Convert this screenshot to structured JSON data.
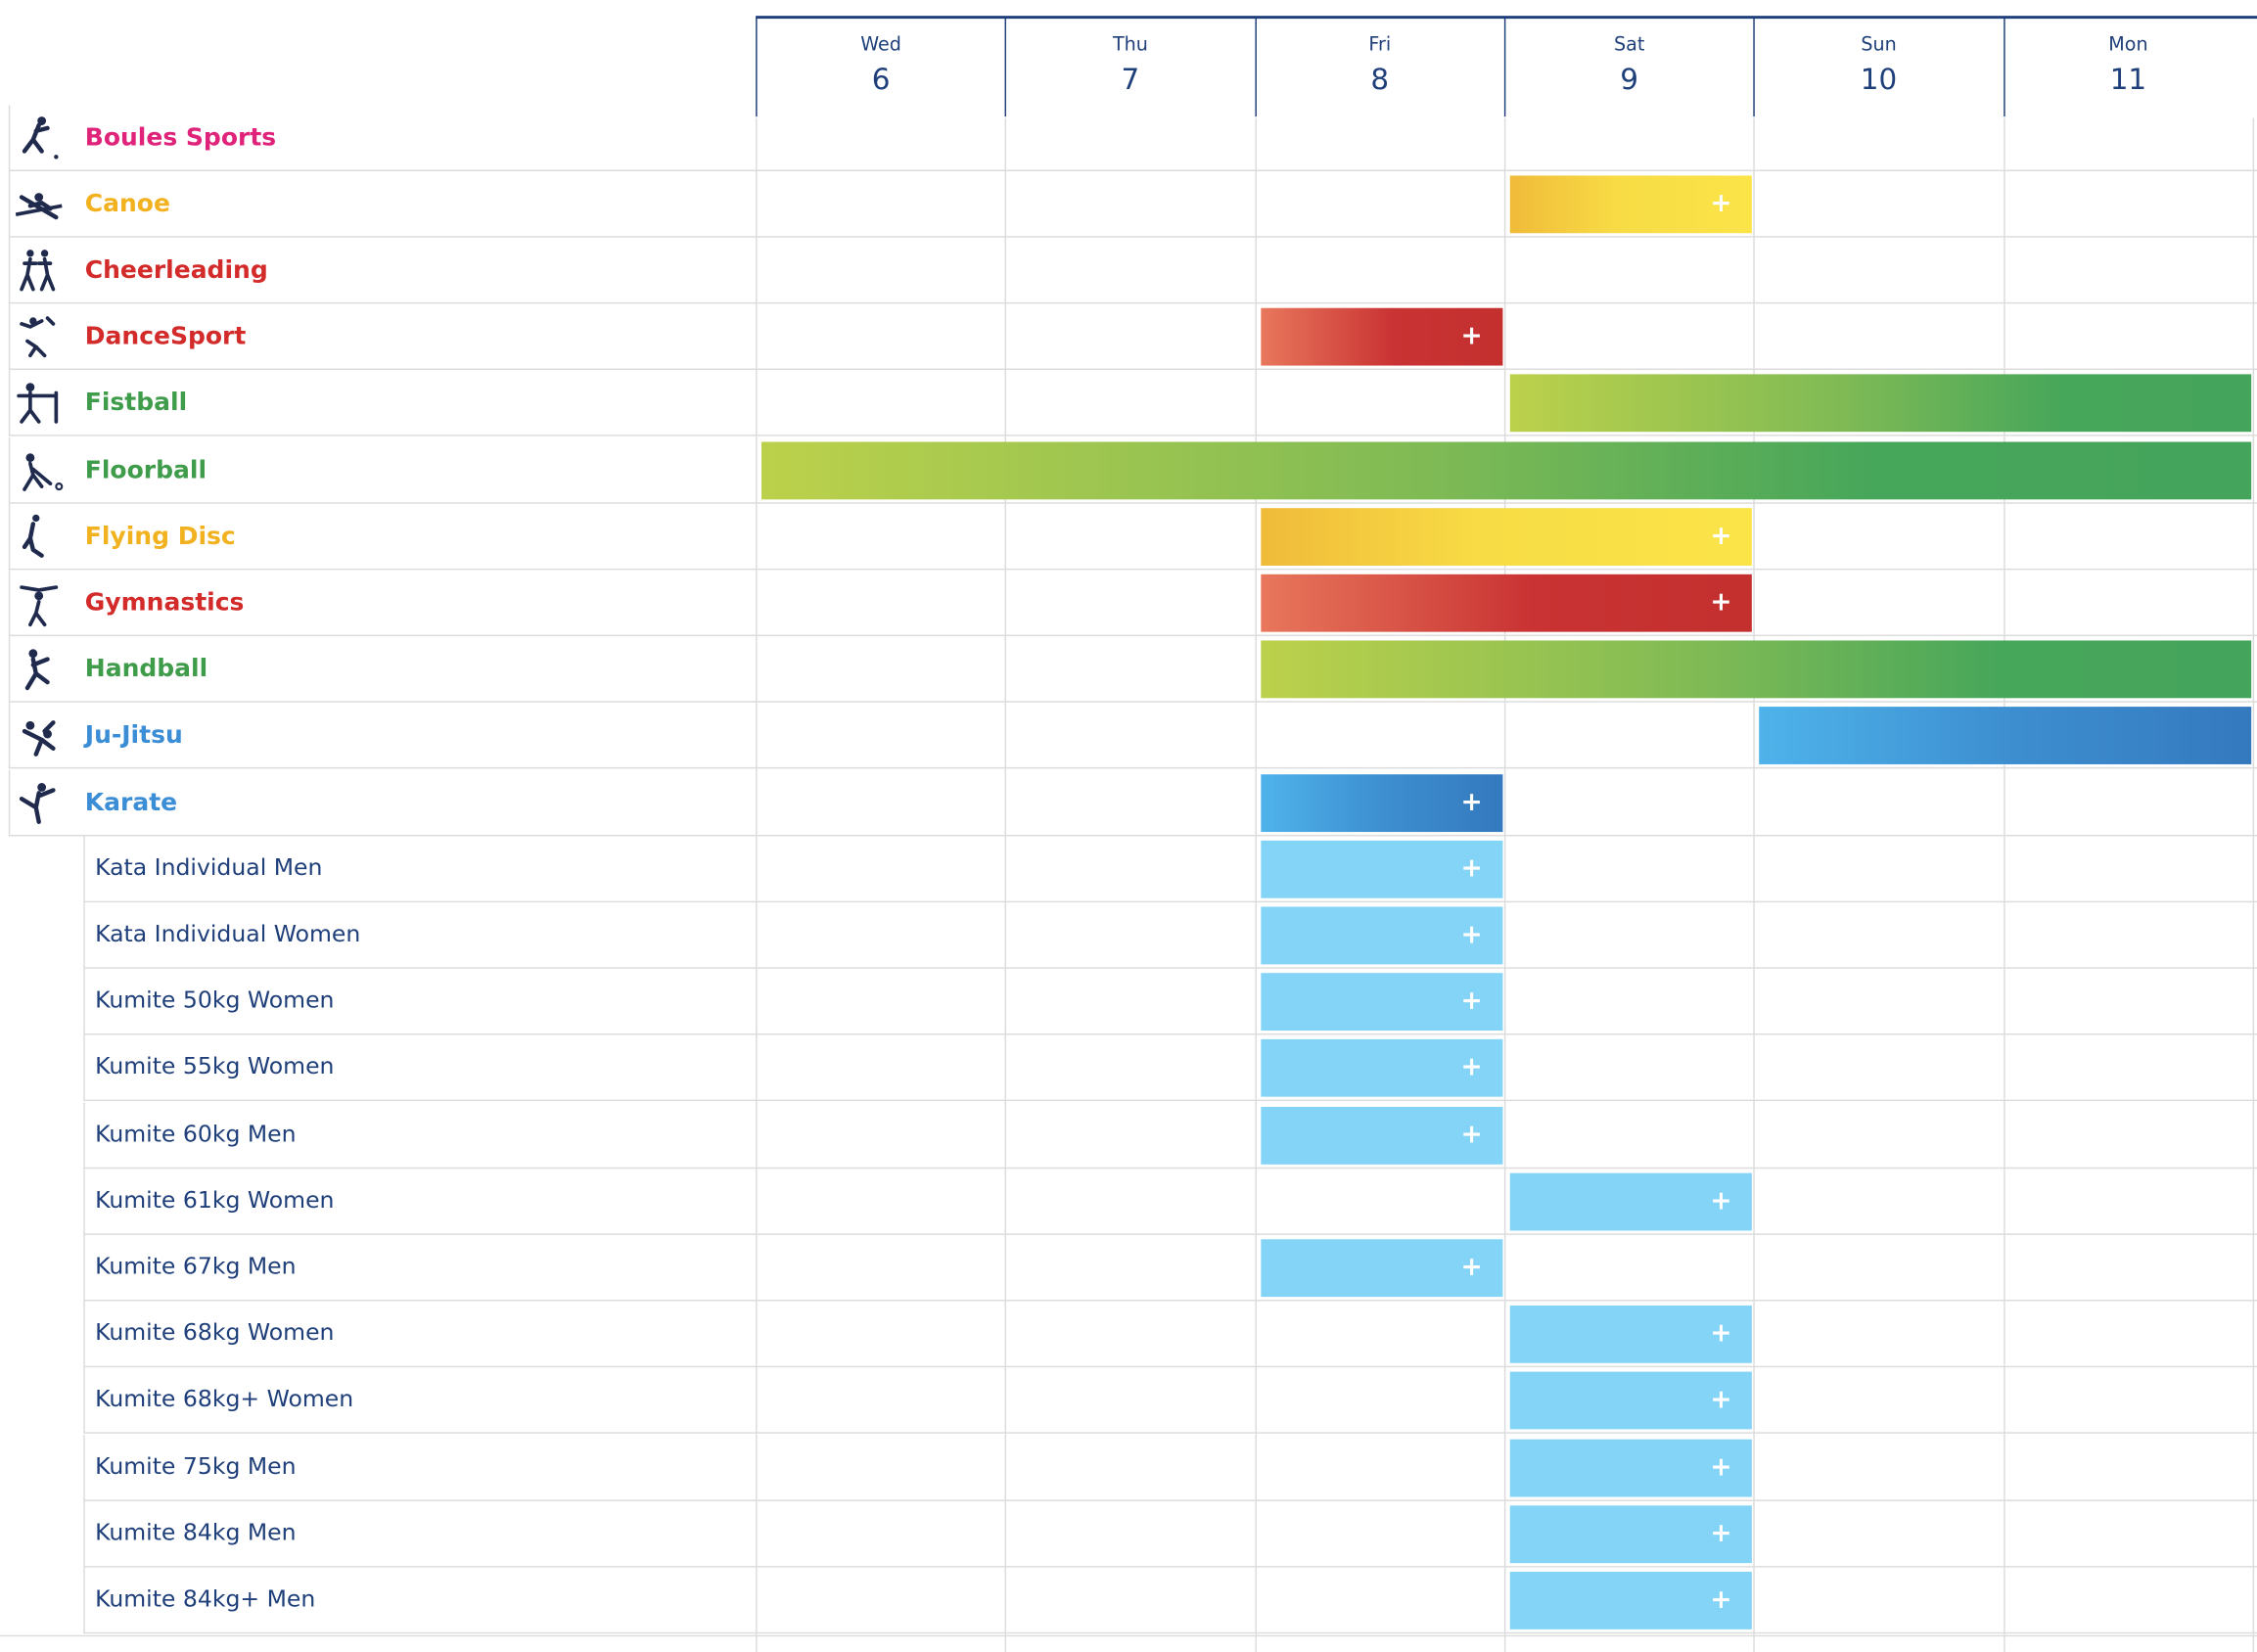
{
  "days": [
    {
      "name": "Wed",
      "num": "6"
    },
    {
      "name": "Thu",
      "num": "7"
    },
    {
      "name": "Fri",
      "num": "8"
    },
    {
      "name": "Sat",
      "num": "9"
    },
    {
      "name": "Sun",
      "num": "10"
    },
    {
      "name": "Mon",
      "num": "11"
    }
  ],
  "colors": {
    "pink": "#e0237a",
    "yellow_text": "#f2b21f",
    "red_text": "#d32a2a",
    "green_text": "#3f9c4a",
    "blue_text": "#3b8ed6",
    "event_text": "#1f3f7a",
    "header_line": "#1f3f7a",
    "light_blue_bar": "#84d4f7"
  },
  "sports": [
    {
      "name": "Boules Sports",
      "color": "#e0237a",
      "icon": "boules-icon"
    },
    {
      "name": "Canoe",
      "color": "#f2b21f",
      "icon": "canoe-icon",
      "bar": {
        "start": 3,
        "end": 4,
        "style": "yellow",
        "plus": true
      }
    },
    {
      "name": "Cheerleading",
      "color": "#d32a2a",
      "icon": "cheerleading-icon"
    },
    {
      "name": "DanceSport",
      "color": "#d32a2a",
      "icon": "dancesport-icon",
      "bar": {
        "start": 2,
        "end": 3,
        "style": "red",
        "plus": true
      }
    },
    {
      "name": "Fistball",
      "color": "#3f9c4a",
      "icon": "fistball-icon",
      "bar": {
        "start": 3,
        "end": 6,
        "style": "green",
        "plus": false
      }
    },
    {
      "name": "Floorball",
      "color": "#3f9c4a",
      "icon": "floorball-icon",
      "bar": {
        "start": 0,
        "end": 6,
        "style": "green",
        "plus": false
      }
    },
    {
      "name": "Flying Disc",
      "color": "#f2b21f",
      "icon": "flying-disc-icon",
      "bar": {
        "start": 2,
        "end": 4,
        "style": "yellow",
        "plus": true
      }
    },
    {
      "name": "Gymnastics",
      "color": "#d32a2a",
      "icon": "gymnastics-icon",
      "bar": {
        "start": 2,
        "end": 4,
        "style": "red",
        "plus": true
      }
    },
    {
      "name": "Handball",
      "color": "#3f9c4a",
      "icon": "handball-icon",
      "bar": {
        "start": 2,
        "end": 6,
        "style": "green",
        "plus": false
      }
    },
    {
      "name": "Ju-Jitsu",
      "color": "#3b8ed6",
      "icon": "ju-jitsu-icon",
      "bar": {
        "start": 4,
        "end": 6,
        "style": "blue",
        "plus": false
      }
    },
    {
      "name": "Karate",
      "color": "#3b8ed6",
      "icon": "karate-icon",
      "bar": {
        "start": 2,
        "end": 3,
        "style": "blue",
        "plus": true
      }
    }
  ],
  "events": [
    {
      "name": "Kata Individual Men",
      "day": 2
    },
    {
      "name": "Kata Individual Women",
      "day": 2
    },
    {
      "name": "Kumite 50kg Women",
      "day": 2
    },
    {
      "name": "Kumite 55kg Women",
      "day": 2
    },
    {
      "name": "Kumite 60kg Men",
      "day": 2
    },
    {
      "name": "Kumite 61kg Women",
      "day": 3
    },
    {
      "name": "Kumite 67kg Men",
      "day": 2
    },
    {
      "name": "Kumite 68kg Women",
      "day": 3
    },
    {
      "name": "Kumite 68kg+ Women",
      "day": 3
    },
    {
      "name": "Kumite 75kg Men",
      "day": 3
    },
    {
      "name": "Kumite 84kg Men",
      "day": 3
    },
    {
      "name": "Kumite 84kg+ Men",
      "day": 3
    }
  ],
  "plus_symbol": "+"
}
